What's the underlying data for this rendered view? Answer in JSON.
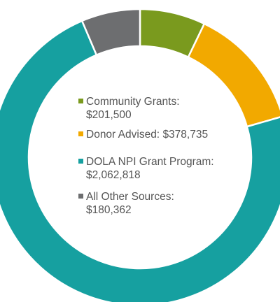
{
  "chart_data": {
    "type": "pie",
    "donut": true,
    "title": "",
    "legend_position": "center",
    "slices": [
      {
        "label": "Community Grants:",
        "value_text": "$201,500",
        "value": 201500,
        "color": "#7a9a1e",
        "split": true
      },
      {
        "label": "Donor Advised:",
        "value_text": "$378,735",
        "value": 378735,
        "color": "#f2a900",
        "split": false
      },
      {
        "label": "DOLA NPI Grant Program:",
        "value_text": "$2,062,818",
        "value": 2062818,
        "color": "#16a0a0",
        "split": true
      },
      {
        "label": "All Other Sources:",
        "value_text": "$180,362",
        "value": 180362,
        "color": "#6d6e70",
        "split": true
      }
    ]
  }
}
